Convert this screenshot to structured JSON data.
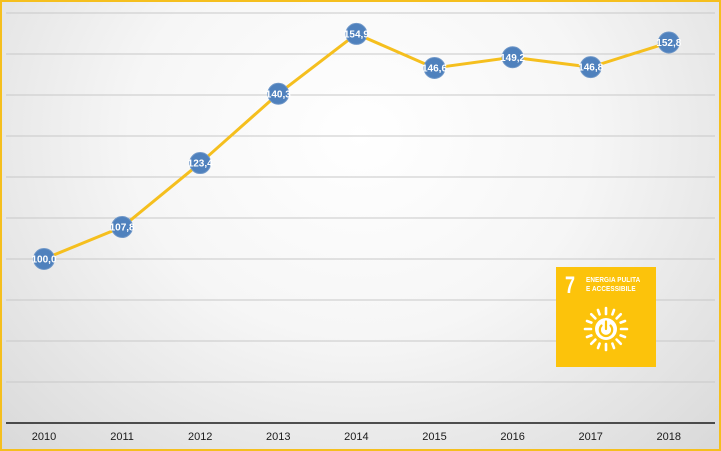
{
  "chart_data": {
    "type": "line",
    "categories": [
      "2010",
      "2011",
      "2012",
      "2013",
      "2014",
      "2015",
      "2016",
      "2017",
      "2018"
    ],
    "series": [
      {
        "values": [
          100.0,
          107.8,
          123.4,
          140.3,
          154.9,
          146.6,
          149.2,
          146.8,
          152.8
        ],
        "labels": [
          "100,0",
          "107,8",
          "123,4",
          "140,3",
          "154,9",
          "146,6",
          "149,2",
          "146,8",
          "152,8"
        ]
      }
    ],
    "ylim": [
      60,
      160
    ],
    "grid": true,
    "line_color": "#f5bf1e",
    "marker_color": "#4f81bd"
  },
  "sdg_badge": {
    "number": "7",
    "title": "ENERGIA PULITA\nE ACCESSIBILE",
    "icon": "sun-power-icon",
    "color": "#fcc30b"
  }
}
